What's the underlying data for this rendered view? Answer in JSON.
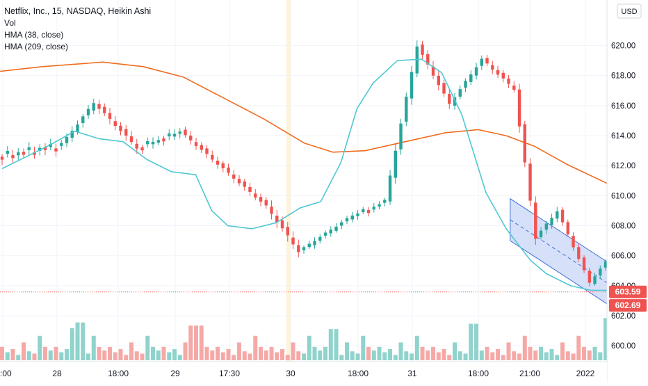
{
  "header": {
    "title": "Netflix, Inc., 15, NASDAQ, Heikin Ashi",
    "indicators": [
      "Vol",
      "HMA (38, close)",
      "HMA (209, close)"
    ]
  },
  "currency_button": "USD",
  "colors": {
    "up": "#26a69a",
    "down": "#ef5350",
    "vol_up": "#8fd3cc",
    "vol_down": "#f5a9a7",
    "hma38": "#4fc8d3",
    "hma209": "#ef6c1f",
    "channel_fill": "#c9d6f7",
    "channel_line": "#3a6fd8",
    "arrow": "#2962ff",
    "price_label": "#ef5350",
    "grid": "#f0f3fa",
    "highlight": "#fff3d6"
  },
  "price_labels": {
    "last": "603.59",
    "current": "602.69"
  },
  "chart_data": {
    "type": "candlestick",
    "title": "Netflix, Inc., 15, NASDAQ, Heikin Ashi",
    "ylim": [
      599.5,
      621.0
    ],
    "y_ticks": [
      "600.00",
      "602.00",
      "604.00",
      "606.00",
      "608.00",
      "610.00",
      "612.00",
      "614.00",
      "616.00",
      "618.00",
      "620.00"
    ],
    "x_ticks": [
      ":00",
      "28",
      "18:00",
      "29",
      "17:30",
      "30",
      "18:00",
      "31",
      "18:00",
      "21:00",
      "2022"
    ],
    "grid": true,
    "candle_count": 114,
    "series": [
      {
        "name": "Heikin Ashi",
        "segments": [
          {
            "from": 0,
            "to": 12,
            "start": 612.6,
            "end": 613.4,
            "amp": 0.6
          },
          {
            "from": 12,
            "to": 18,
            "start": 613.4,
            "end": 616.2,
            "amp": 0.5
          },
          {
            "from": 18,
            "to": 26,
            "start": 616.2,
            "end": 613.2,
            "amp": 0.6
          },
          {
            "from": 26,
            "to": 34,
            "start": 613.2,
            "end": 614.3,
            "amp": 0.5
          },
          {
            "from": 34,
            "to": 50,
            "start": 614.3,
            "end": 609.3,
            "amp": 0.5
          },
          {
            "from": 50,
            "to": 56,
            "start": 609.3,
            "end": 606.3,
            "amp": 0.7
          },
          {
            "from": 56,
            "to": 66,
            "start": 606.3,
            "end": 608.7,
            "amp": 0.4
          },
          {
            "from": 66,
            "to": 72,
            "start": 608.7,
            "end": 609.6,
            "amp": 0.4
          },
          {
            "from": 72,
            "to": 78,
            "start": 609.6,
            "end": 620.0,
            "amp": 0.7
          },
          {
            "from": 78,
            "to": 84,
            "start": 620.0,
            "end": 616.1,
            "amp": 0.6
          },
          {
            "from": 84,
            "to": 90,
            "start": 616.1,
            "end": 619.1,
            "amp": 0.5
          },
          {
            "from": 90,
            "to": 96,
            "start": 619.1,
            "end": 617.1,
            "amp": 0.5
          },
          {
            "from": 96,
            "to": 100,
            "start": 617.1,
            "end": 607.2,
            "amp": 0.7
          },
          {
            "from": 100,
            "to": 104,
            "start": 607.2,
            "end": 609.0,
            "amp": 0.5
          },
          {
            "from": 104,
            "to": 110,
            "start": 609.0,
            "end": 604.2,
            "amp": 0.4
          },
          {
            "from": 110,
            "to": 113,
            "start": 604.2,
            "end": 605.6,
            "amp": 0.4
          },
          {
            "from": 113,
            "to": 114,
            "start": 605.6,
            "end": 602.7,
            "amp": 0.6
          }
        ]
      },
      {
        "name": "HMA (38, close)",
        "points": [
          [
            0,
            611.8
          ],
          [
            6,
            612.6
          ],
          [
            12,
            613.4
          ],
          [
            18,
            614.3
          ],
          [
            24,
            613.8
          ],
          [
            30,
            613.6
          ],
          [
            36,
            612.4
          ],
          [
            42,
            611.6
          ],
          [
            48,
            611.4
          ],
          [
            52,
            609.0
          ],
          [
            56,
            608.0
          ],
          [
            62,
            607.8
          ],
          [
            68,
            608.2
          ],
          [
            74,
            609.2
          ],
          [
            79,
            609.6
          ],
          [
            84,
            612.2
          ],
          [
            88,
            615.8
          ],
          [
            92,
            617.5
          ],
          [
            98,
            619.0
          ],
          [
            104,
            619.1
          ],
          [
            109,
            618.2
          ],
          [
            114,
            615.4
          ],
          [
            120,
            610.2
          ],
          [
            125,
            607.8
          ],
          [
            131,
            605.7
          ],
          [
            135,
            604.8
          ],
          [
            141,
            604.0
          ],
          [
            146,
            603.7
          ],
          [
            151,
            603.7
          ]
        ]
      },
      {
        "name": "HMA (209, close)",
        "points": [
          [
            -10,
            618.0
          ],
          [
            10,
            618.6
          ],
          [
            25,
            618.9
          ],
          [
            35,
            618.6
          ],
          [
            45,
            617.9
          ],
          [
            55,
            616.5
          ],
          [
            65,
            615.1
          ],
          [
            75,
            613.5
          ],
          [
            82,
            612.9
          ],
          [
            90,
            613.0
          ],
          [
            100,
            613.6
          ],
          [
            110,
            614.2
          ],
          [
            118,
            614.4
          ],
          [
            125,
            614.0
          ],
          [
            132,
            613.3
          ],
          [
            140,
            612.1
          ],
          [
            151,
            610.7
          ]
        ]
      }
    ],
    "volume": {
      "pattern": [
        0.3,
        0.18,
        0.25,
        0.12,
        0.4,
        0.2,
        0.15,
        0.55,
        0.3,
        0.22
      ],
      "spikes": {
        "18": 0.72,
        "19": 0.85,
        "48": 0.78,
        "82": 0.7,
        "117": 0.82,
        "150": 0.95
      }
    },
    "channel": {
      "upper": [
        [
          126,
          609.8
        ],
        [
          150,
          605.6
        ]
      ],
      "lower": [
        [
          126,
          607.0
        ],
        [
          150,
          602.8
        ]
      ]
    },
    "projection": [
      [
        150,
        602.8
      ],
      [
        161,
        607.8
      ]
    ]
  }
}
